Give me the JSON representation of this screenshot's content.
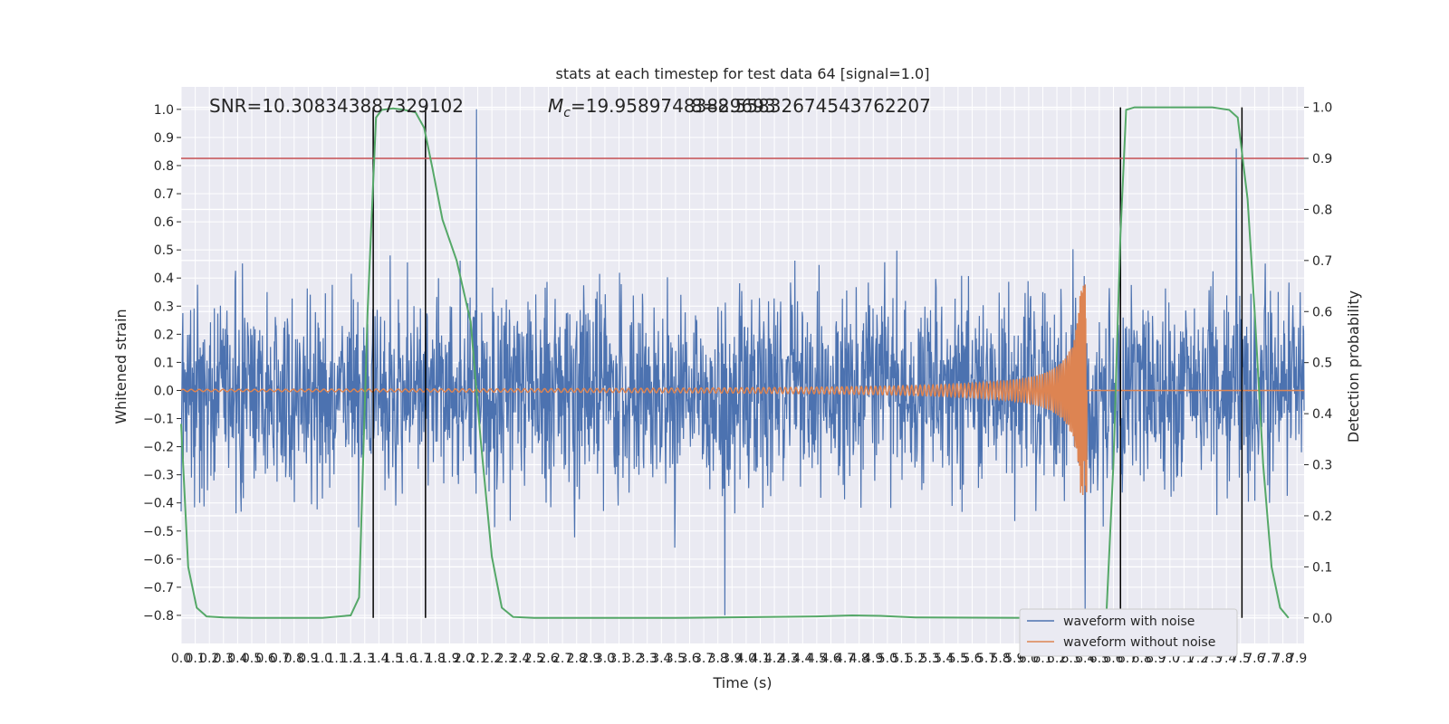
{
  "chart_data": {
    "type": "line",
    "title": "stats at each timestep for test data 64 [signal=1.0]",
    "xlabel": "Time (s)",
    "ylabel_left": "Whitened strain",
    "ylabel_right": "Detection probability",
    "xlim": [
      0.0,
      7.95
    ],
    "ylim_left": [
      -0.9,
      1.08
    ],
    "ylim_right": [
      -0.05,
      1.04
    ],
    "x_ticks": [
      "0.0",
      "0.1",
      "0.2",
      "0.3",
      "0.4",
      "0.5",
      "0.6",
      "0.7",
      "0.8",
      "0.9",
      "1.0",
      "1.1",
      "1.2",
      "1.3",
      "1.4",
      "1.5",
      "1.6",
      "1.7",
      "1.8",
      "1.9",
      "2.0",
      "2.1",
      "2.2",
      "2.3",
      "2.4",
      "2.5",
      "2.6",
      "2.7",
      "2.8",
      "2.9",
      "3.0",
      "3.1",
      "3.2",
      "3.3",
      "3.4",
      "3.5",
      "3.6",
      "3.7",
      "3.8",
      "3.9",
      "4.0",
      "4.1",
      "4.2",
      "4.3",
      "4.4",
      "4.5",
      "4.6",
      "4.7",
      "4.8",
      "4.9",
      "5.0",
      "5.1",
      "5.2",
      "5.3",
      "5.4",
      "5.5",
      "5.6",
      "5.7",
      "5.8",
      "5.9",
      "6.0",
      "6.1",
      "6.2",
      "6.3",
      "6.4",
      "6.5",
      "6.6",
      "6.7",
      "6.8",
      "6.9",
      "7.0",
      "7.1",
      "7.2",
      "7.3",
      "7.4",
      "7.5",
      "7.6",
      "7.7",
      "7.8",
      "7.9"
    ],
    "y_ticks_left": [
      "1.0",
      "0.9",
      "0.8",
      "0.7",
      "0.6",
      "0.5",
      "0.4",
      "0.3",
      "0.2",
      "0.1",
      "0.0",
      "−0.1",
      "−0.2",
      "−0.3",
      "−0.4",
      "−0.5",
      "−0.6",
      "−0.7",
      "−0.8"
    ],
    "y_ticks_right": [
      "1.0",
      "0.9",
      "0.8",
      "0.7",
      "0.6",
      "0.5",
      "0.4",
      "0.3",
      "0.2",
      "0.1",
      "0.0"
    ],
    "threshold": {
      "axis": "right",
      "y": 0.9,
      "color": "#c44e52"
    },
    "vertical_markers_x": [
      1.36,
      1.73,
      6.65,
      7.51
    ],
    "annotations": {
      "snr": "SNR=10.308343887329102",
      "mc_prefix": "M",
      "mc_sub": "c",
      "mc_value": "=19.95897483829693",
      "overlap": "8=8.55832674543762207"
    },
    "series": [
      {
        "name": "waveform with noise",
        "axis": "left",
        "color": "#4c72b0",
        "kind": "noise",
        "typical_range": [
          -0.42,
          0.45
        ],
        "max": 1.0,
        "min": -0.8,
        "spikes": [
          [
            2.09,
            1.0
          ],
          [
            3.85,
            -0.8
          ],
          [
            7.47,
            0.86
          ],
          [
            6.4,
            -0.79
          ]
        ]
      },
      {
        "name": "waveform without noise",
        "axis": "left",
        "color": "#dd8452",
        "kind": "chirp",
        "start_amplitude": 0.004,
        "peak_time": 6.41,
        "peak_amplitude": 0.38,
        "min_amplitude": -0.34,
        "after_peak": 0.0
      },
      {
        "axis": "right",
        "color": "#55a868",
        "points": [
          [
            0.0,
            0.38
          ],
          [
            0.05,
            0.1
          ],
          [
            0.11,
            0.02
          ],
          [
            0.18,
            0.003
          ],
          [
            0.3,
            0.001
          ],
          [
            0.5,
            0.0
          ],
          [
            1.0,
            0.0
          ],
          [
            1.2,
            0.005
          ],
          [
            1.26,
            0.04
          ],
          [
            1.32,
            0.6
          ],
          [
            1.38,
            0.98
          ],
          [
            1.42,
            0.995
          ],
          [
            1.5,
            0.998
          ],
          [
            1.58,
            0.995
          ],
          [
            1.66,
            0.99
          ],
          [
            1.72,
            0.96
          ],
          [
            1.78,
            0.88
          ],
          [
            1.85,
            0.78
          ],
          [
            1.95,
            0.7
          ],
          [
            2.05,
            0.58
          ],
          [
            2.12,
            0.35
          ],
          [
            2.2,
            0.12
          ],
          [
            2.27,
            0.02
          ],
          [
            2.35,
            0.002
          ],
          [
            2.5,
            0.0
          ],
          [
            3.5,
            0.0
          ],
          [
            4.5,
            0.003
          ],
          [
            4.75,
            0.005
          ],
          [
            4.95,
            0.004
          ],
          [
            5.2,
            0.001
          ],
          [
            6.0,
            0.0
          ],
          [
            6.55,
            0.003
          ],
          [
            6.6,
            0.3
          ],
          [
            6.65,
            0.75
          ],
          [
            6.69,
            0.995
          ],
          [
            6.75,
            1.0
          ],
          [
            7.0,
            1.0
          ],
          [
            7.3,
            1.0
          ],
          [
            7.42,
            0.995
          ],
          [
            7.48,
            0.98
          ],
          [
            7.55,
            0.82
          ],
          [
            7.6,
            0.6
          ],
          [
            7.66,
            0.3
          ],
          [
            7.72,
            0.1
          ],
          [
            7.78,
            0.02
          ],
          [
            7.84,
            0.0
          ]
        ]
      }
    ],
    "legend": {
      "placement": "lower-right",
      "entries": [
        {
          "label": "waveform with noise",
          "color": "#4c72b0"
        },
        {
          "label": "waveform without noise",
          "color": "#dd8452"
        }
      ]
    },
    "grid": true,
    "style": {
      "background": "#eaeaf2",
      "grid_color": "#ffffff",
      "marker_color": "#000000"
    }
  }
}
